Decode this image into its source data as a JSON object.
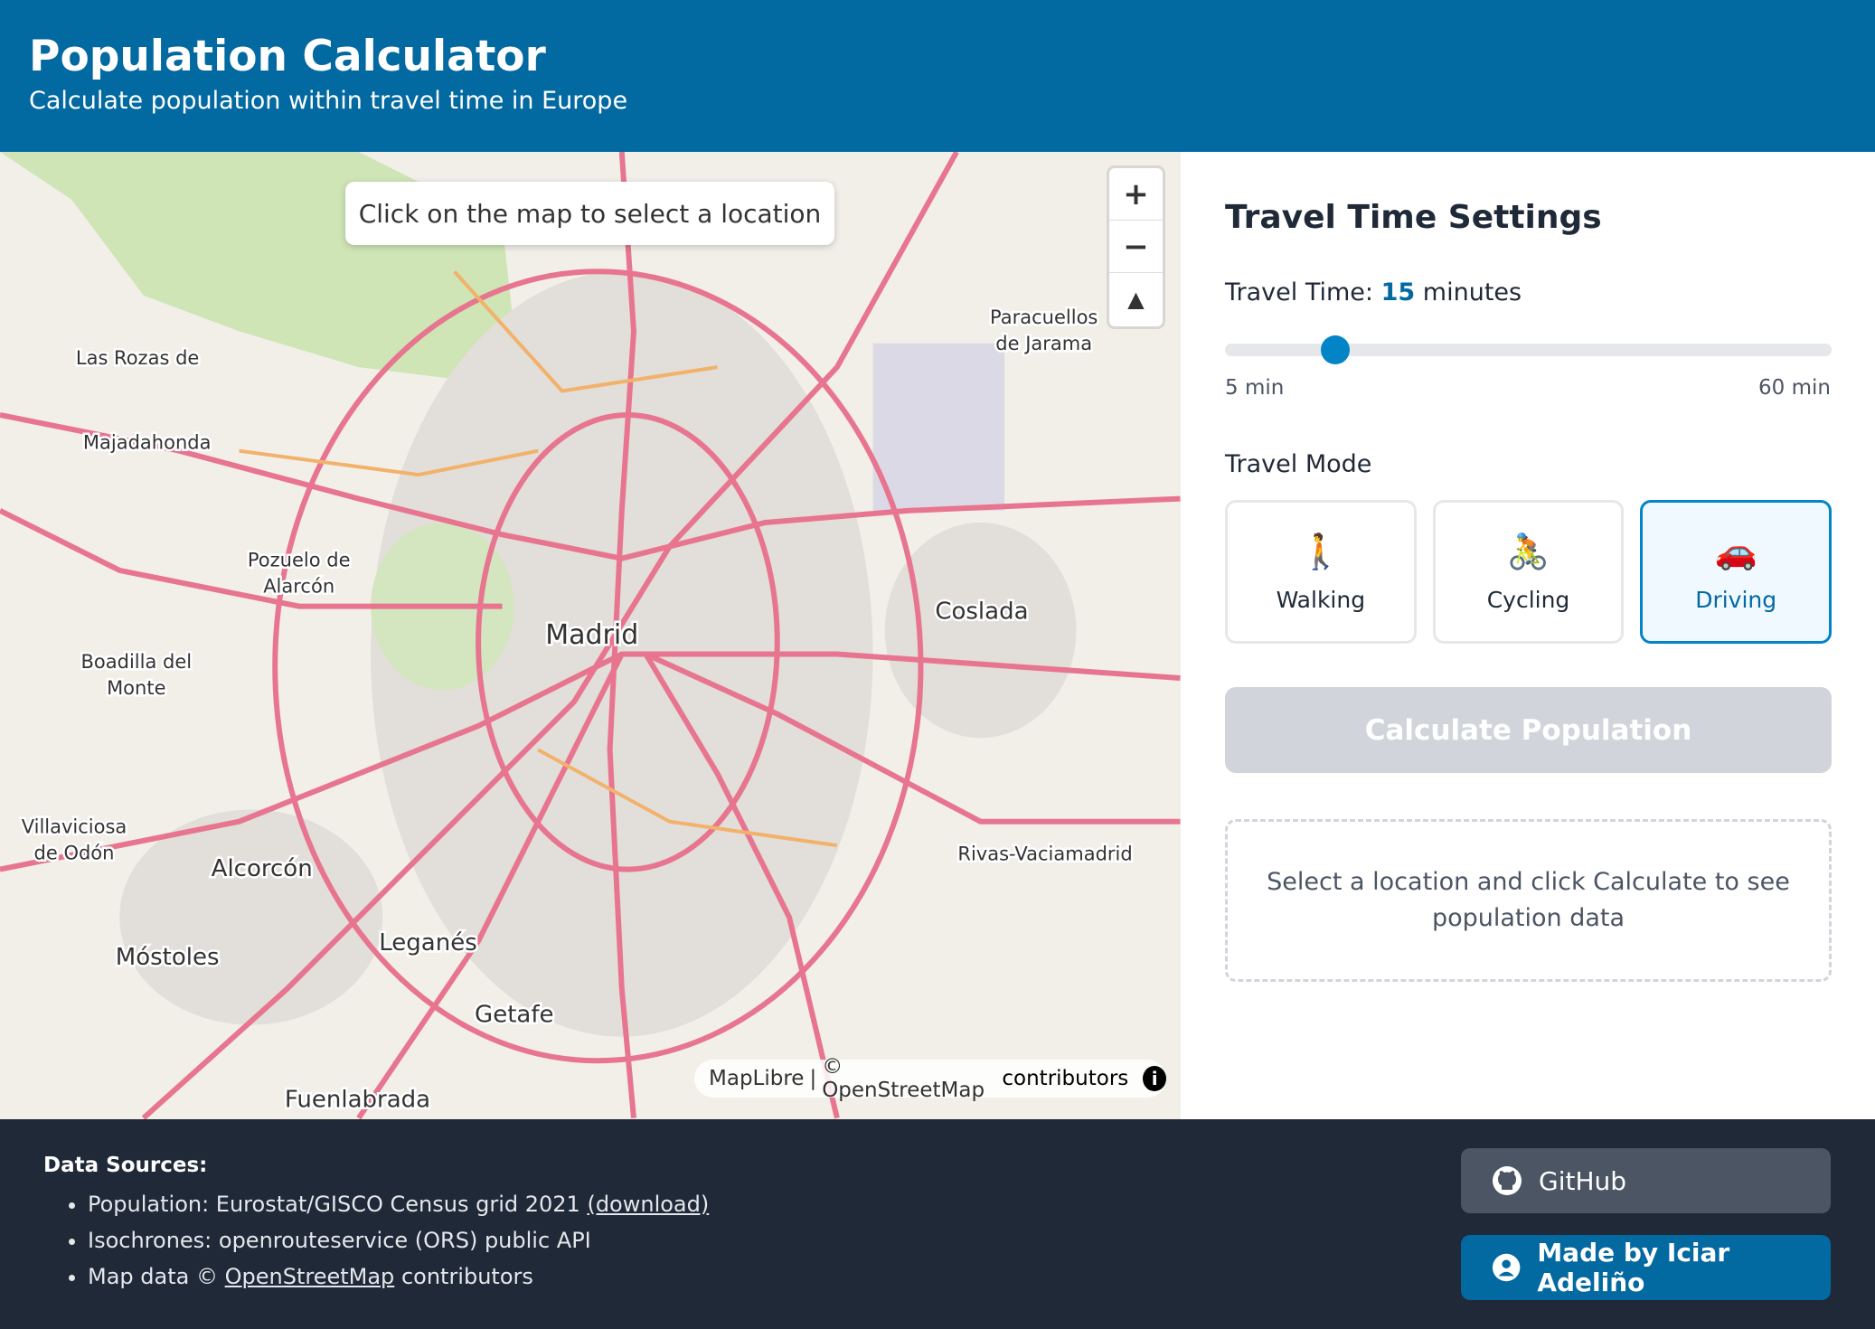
{
  "header": {
    "title": "Population Calculator",
    "subtitle": "Calculate population within travel time in Europe"
  },
  "map": {
    "hint": "Click on the map to select a location",
    "attribution": {
      "library": "MapLibre",
      "separator": "|",
      "copyright": "© OpenStreetMap",
      "contributors": "contributors"
    },
    "places": [
      "Madrid",
      "Coslada",
      "Alcorcón",
      "Leganés",
      "Getafe",
      "Móstoles",
      "Fuenlabrada",
      "Majadahonda",
      "Rivas-Vaciamadrid",
      "Las Rozas de",
      "Pozuelo de",
      "Alarcón",
      "Boadilla del",
      "Monte",
      "Villaviciosa",
      "de Odón",
      "Paracuellos",
      "de Jarama"
    ]
  },
  "settings": {
    "title": "Travel Time Settings",
    "travel_time": {
      "label": "Travel Time:",
      "value": 15,
      "unit": "minutes",
      "min": 5,
      "max": 60,
      "min_label": "5 min",
      "max_label": "60 min"
    },
    "mode_title": "Travel Mode",
    "modes": [
      {
        "icon": "🚶",
        "label": "Walking"
      },
      {
        "icon": "🚴",
        "label": "Cycling"
      },
      {
        "icon": "🚗",
        "label": "Driving"
      }
    ],
    "selected_mode": 2,
    "calculate": "Calculate Population",
    "placeholder": "Select a location and click Calculate to see population data"
  },
  "footer": {
    "sources_title": "Data Sources:",
    "sources": [
      {
        "text": "Population: Eurostat/GISCO Census grid 2021",
        "link": "(download)"
      },
      {
        "text": "Isochrones: openrouteservice (ORS) public API"
      },
      {
        "text": "Map data ©",
        "link": "OpenStreetMap",
        "after": "contributors"
      }
    ],
    "github": "GitHub",
    "author": "Made by Iciar Adeliño"
  }
}
